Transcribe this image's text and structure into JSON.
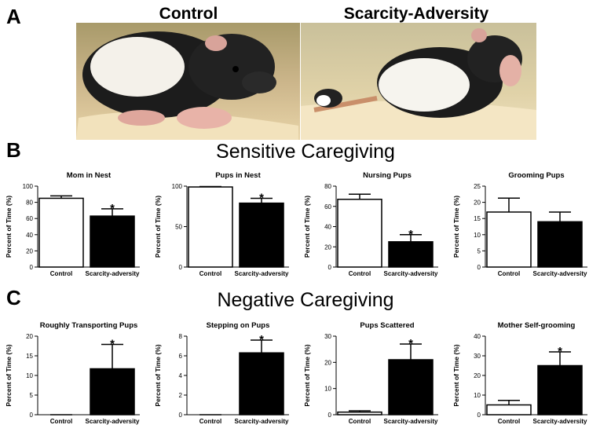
{
  "figure": {
    "panel_a": {
      "label": "A",
      "photo_labels": [
        "Control",
        "Scarcity-Adversity"
      ]
    },
    "panel_b": {
      "label": "B",
      "title": "Sensitive Caregiving"
    },
    "panel_c": {
      "label": "C",
      "title": "Negative Caregiving"
    }
  },
  "chart_data": [
    {
      "type": "bar",
      "title": "Mom in Nest",
      "y_label": "Percent of Time (%)",
      "categories": [
        "Control",
        "Scarcity-adversity"
      ],
      "colors": [
        "#ffffff",
        "#000000"
      ],
      "values": [
        85,
        63
      ],
      "errors": [
        3,
        9
      ],
      "significance": [
        null,
        "*"
      ],
      "ylim": [
        0,
        100
      ],
      "yticks": [
        0,
        20,
        40,
        60,
        80,
        100
      ]
    },
    {
      "type": "bar",
      "title": "Pups in Nest",
      "y_label": "Percent of Time (%)",
      "categories": [
        "Control",
        "Scarcity-adversity"
      ],
      "colors": [
        "#ffffff",
        "#000000"
      ],
      "values": [
        99,
        79
      ],
      "errors": [
        0.5,
        6
      ],
      "significance": [
        null,
        "*"
      ],
      "ylim": [
        0,
        100
      ],
      "yticks": [
        0,
        50,
        100
      ]
    },
    {
      "type": "bar",
      "title": "Nursing Pups",
      "y_label": "Percent of Time (%)",
      "categories": [
        "Control",
        "Scarcity-adversity"
      ],
      "colors": [
        "#ffffff",
        "#000000"
      ],
      "values": [
        67,
        25
      ],
      "errors": [
        5,
        7
      ],
      "significance": [
        null,
        "*"
      ],
      "ylim": [
        0,
        80
      ],
      "yticks": [
        0,
        20,
        40,
        60,
        80
      ]
    },
    {
      "type": "bar",
      "title": "Grooming Pups",
      "y_label": "Percent of Time (%)",
      "categories": [
        "Control",
        "Scarcity-adversity"
      ],
      "colors": [
        "#ffffff",
        "#000000"
      ],
      "values": [
        17,
        14
      ],
      "errors": [
        4.3,
        3
      ],
      "ylim": [
        0,
        25
      ],
      "yticks": [
        0,
        5,
        10,
        15,
        20,
        25
      ]
    },
    {
      "type": "bar",
      "title": "Roughly Transporting Pups",
      "y_label": "Percent of Time (%)",
      "categories": [
        "Control",
        "Scarcity-adversity"
      ],
      "colors": [
        "#ffffff",
        "#000000"
      ],
      "values": [
        0,
        11.7
      ],
      "errors": [
        0,
        6.2
      ],
      "significance": [
        null,
        "*"
      ],
      "ylim": [
        0,
        20
      ],
      "yticks": [
        0,
        5,
        10,
        15,
        20
      ]
    },
    {
      "type": "bar",
      "title": "Stepping on Pups",
      "y_label": "Percent of Time (%)",
      "categories": [
        "Control",
        "Scarcity-adversity"
      ],
      "colors": [
        "#ffffff",
        "#000000"
      ],
      "values": [
        0,
        6.3
      ],
      "errors": [
        0,
        1.3
      ],
      "significance": [
        null,
        "*"
      ],
      "ylim": [
        0,
        8
      ],
      "yticks": [
        0,
        2,
        4,
        6,
        8
      ]
    },
    {
      "type": "bar",
      "title": "Pups Scattered",
      "y_label": "Percent of Time (%)",
      "categories": [
        "Control",
        "Scarcity-adversity"
      ],
      "colors": [
        "#ffffff",
        "#000000"
      ],
      "values": [
        1,
        21
      ],
      "errors": [
        0.5,
        6
      ],
      "significance": [
        null,
        "*"
      ],
      "ylim": [
        0,
        30
      ],
      "yticks": [
        0,
        10,
        20,
        30
      ]
    },
    {
      "type": "bar",
      "title": "Mother Self-grooming",
      "y_label": "Percent of Time (%)",
      "categories": [
        "Control",
        "Scarcity-adversity"
      ],
      "colors": [
        "#ffffff",
        "#000000"
      ],
      "values": [
        5,
        25
      ],
      "errors": [
        2.3,
        7
      ],
      "significance": [
        null,
        "*"
      ],
      "ylim": [
        0,
        40
      ],
      "yticks": [
        0,
        10,
        20,
        30,
        40
      ]
    }
  ]
}
